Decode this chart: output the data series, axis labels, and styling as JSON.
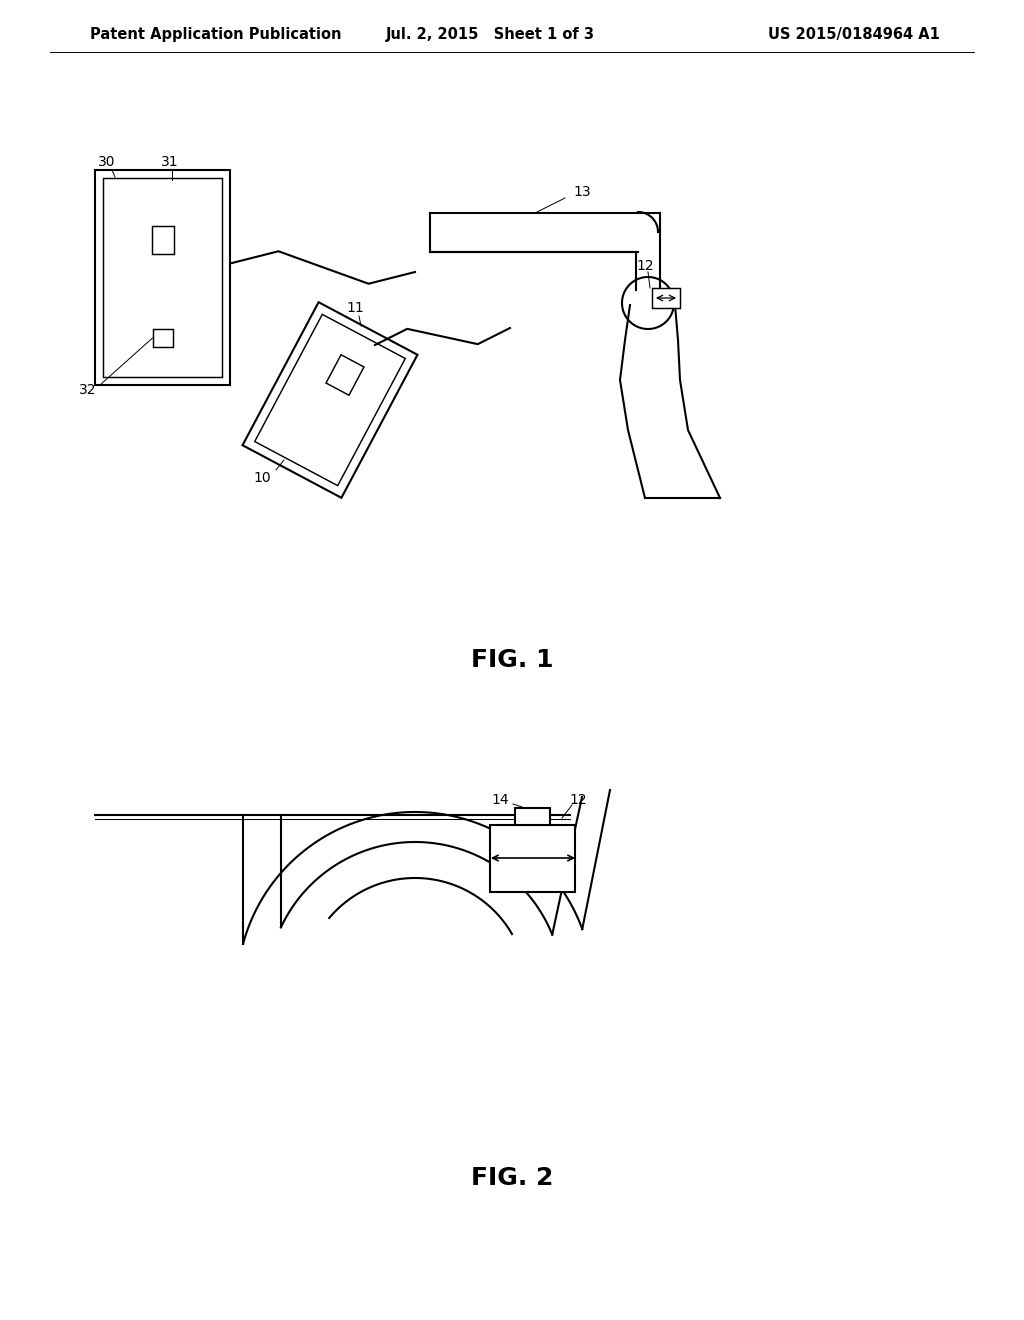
{
  "bg_color": "#ffffff",
  "header_left": "Patent Application Publication",
  "header_mid": "Jul. 2, 2015   Sheet 1 of 3",
  "header_right": "US 2015/0184964 A1",
  "fig1_label": "FIG. 1",
  "fig2_label": "FIG. 2",
  "line_color": "#000000",
  "line_width": 1.5
}
